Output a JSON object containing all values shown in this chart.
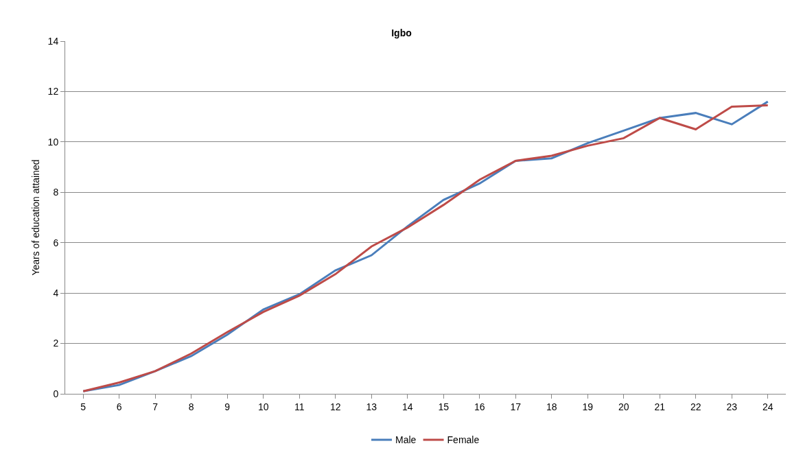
{
  "chart_data": {
    "type": "line",
    "title": "Igbo",
    "ylabel": "Years of education attained",
    "categories": [
      "5",
      "6",
      "7",
      "8",
      "9",
      "10",
      "11",
      "12",
      "13",
      "14",
      "15",
      "16",
      "17",
      "18",
      "19",
      "20",
      "21",
      "22",
      "23",
      "24"
    ],
    "series": [
      {
        "name": "Male",
        "color": "#4a7ebb",
        "values": [
          0.1,
          0.35,
          0.9,
          1.5,
          2.35,
          3.35,
          3.95,
          4.9,
          5.5,
          6.65,
          7.7,
          8.35,
          9.25,
          9.35,
          9.95,
          10.45,
          10.95,
          11.15,
          10.7,
          11.6
        ]
      },
      {
        "name": "Female",
        "color": "#be4b48",
        "values": [
          0.1,
          0.45,
          0.9,
          1.6,
          2.45,
          3.25,
          3.9,
          4.75,
          5.85,
          6.6,
          7.5,
          8.5,
          9.25,
          9.45,
          9.85,
          10.15,
          10.95,
          10.5,
          11.4,
          11.45
        ]
      }
    ],
    "ylim": [
      0,
      14
    ],
    "yticks": [
      0,
      2,
      4,
      6,
      8,
      10,
      12,
      14
    ],
    "grid": "y",
    "legend": "bottom",
    "marker": "none",
    "line_style": "solid"
  }
}
